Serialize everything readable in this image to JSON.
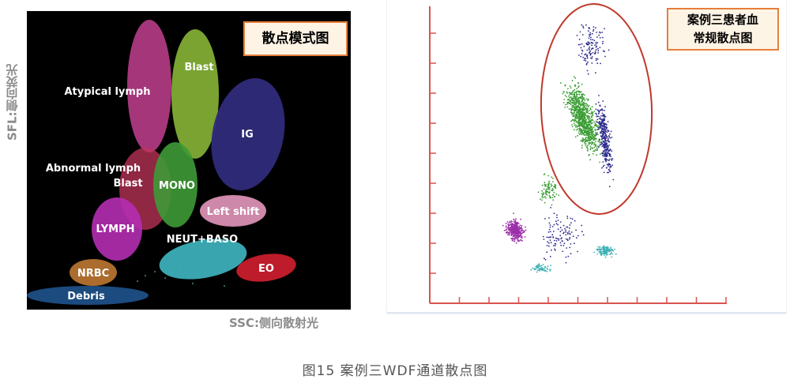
{
  "left": {
    "y_axis_label": "SFL:侧向荧光",
    "x_axis_label": "SSC:侧向散射光",
    "title": "散点模式图",
    "regions": {
      "atypical_lymph": "Atypical lymph",
      "blast_top": "Blast",
      "ig": "IG",
      "abnormal_lymph": "Abnormal lymph",
      "blast_mid": "Blast",
      "mono": "MONO",
      "left_shift": "Left shift",
      "lymph": "LYMPH",
      "neut_baso": "NEUT+BASO",
      "nrbc": "NRBC",
      "eo": "EO",
      "debris": "Debris"
    }
  },
  "right": {
    "title_line1": "案例三患者血",
    "title_line2": "常规散点图"
  },
  "caption": "图15 案例三WDF通道散点图",
  "colors": {
    "title_border": "#e57e3a",
    "title_bg": "#fef4e6",
    "axis_red": "#d9534f",
    "ellipse_red": "#c0392b"
  }
}
